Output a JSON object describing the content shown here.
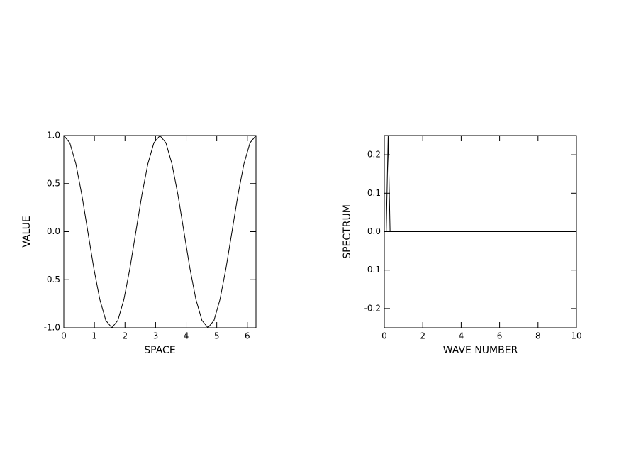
{
  "chart_data": [
    {
      "type": "line",
      "x_label": "SPACE",
      "y_label": "VALUE",
      "x": [
        0,
        0.196,
        0.393,
        0.589,
        0.785,
        0.982,
        1.178,
        1.374,
        1.571,
        1.767,
        1.963,
        2.16,
        2.356,
        2.553,
        2.749,
        2.945,
        3.142,
        3.338,
        3.534,
        3.731,
        3.927,
        4.123,
        4.32,
        4.516,
        4.712,
        4.909,
        5.105,
        5.301,
        5.498,
        5.694,
        5.89,
        6.087,
        6.283
      ],
      "values": [
        1,
        0.924,
        0.707,
        0.383,
        0,
        -0.383,
        -0.707,
        -0.924,
        -1,
        -0.924,
        -0.707,
        -0.383,
        0,
        0.383,
        0.707,
        0.924,
        1,
        0.924,
        0.707,
        0.383,
        0,
        -0.383,
        -0.707,
        -0.924,
        -1,
        -0.924,
        -0.707,
        -0.383,
        0,
        0.383,
        0.707,
        0.924,
        1
      ],
      "color": "#000000",
      "xlim": [
        0,
        6.283
      ],
      "xticks": [
        0,
        1,
        2,
        3,
        4,
        5,
        6
      ],
      "ylim": [
        -1,
        1
      ],
      "yticks": [
        {
          "value": -1,
          "label": "-1.0"
        },
        -0.5,
        {
          "value": 0,
          "label": "0.0"
        },
        0.5,
        {
          "value": 1,
          "label": "1.0"
        }
      ]
    },
    {
      "type": "line",
      "x_label": "WAVE NUMBER",
      "y_label": "SPECTRUM",
      "x": [
        0,
        0.1,
        0.2,
        0.3,
        10
      ],
      "values": [
        0,
        0,
        0.25,
        0,
        0
      ],
      "color": "#000000",
      "xlim": [
        0,
        10
      ],
      "xticks": [
        0,
        2,
        4,
        6,
        8,
        10
      ],
      "ylim": [
        -0.25,
        0.25
      ],
      "yticks": [
        -0.2,
        -0.1,
        {
          "value": 0,
          "label": "0.0"
        },
        0.1,
        0.2
      ]
    }
  ]
}
